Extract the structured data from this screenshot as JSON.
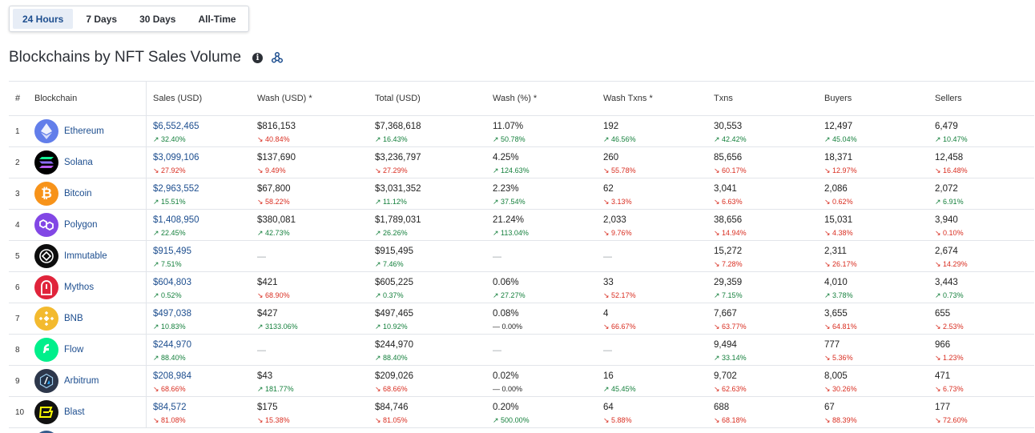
{
  "tabs": [
    {
      "label": "24 Hours",
      "active": true
    },
    {
      "label": "7 Days",
      "active": false
    },
    {
      "label": "30 Days",
      "active": false
    },
    {
      "label": "All-Time",
      "active": false
    }
  ],
  "title": "Blockchains by NFT Sales Volume",
  "headers": {
    "rank": "#",
    "chain": "Blockchain",
    "sales": "Sales (USD)",
    "wash": "Wash (USD) *",
    "total": "Total (USD)",
    "washpct": "Wash (%) *",
    "washtx": "Wash Txns *",
    "txns": "Txns",
    "buyers": "Buyers",
    "sellers": "Sellers"
  },
  "rows": [
    {
      "rank": "1",
      "name": "Ethereum",
      "icon": "ethereum-icon",
      "sales": "$6,552,465",
      "sales_chg": "32.40%",
      "sales_dir": "up",
      "wash": "$816,153",
      "wash_chg": "40.84%",
      "wash_dir": "down",
      "total": "$7,368,618",
      "total_chg": "16.43%",
      "total_dir": "up",
      "washpct": "11.07%",
      "washpct_chg": "50.78%",
      "washpct_dir": "up",
      "washtx": "192",
      "washtx_chg": "46.56%",
      "washtx_dir": "up",
      "txns": "30,553",
      "txns_chg": "42.42%",
      "txns_dir": "up",
      "buyers": "12,497",
      "buyers_chg": "45.04%",
      "buyers_dir": "up",
      "sellers": "6,479",
      "sellers_chg": "10.47%",
      "sellers_dir": "up"
    },
    {
      "rank": "2",
      "name": "Solana",
      "icon": "solana-icon",
      "sales": "$3,099,106",
      "sales_chg": "27.92%",
      "sales_dir": "down",
      "wash": "$137,690",
      "wash_chg": "9.49%",
      "wash_dir": "down",
      "total": "$3,236,797",
      "total_chg": "27.29%",
      "total_dir": "down",
      "washpct": "4.25%",
      "washpct_chg": "124.63%",
      "washpct_dir": "up",
      "washtx": "260",
      "washtx_chg": "55.78%",
      "washtx_dir": "down",
      "txns": "85,656",
      "txns_chg": "60.17%",
      "txns_dir": "down",
      "buyers": "18,371",
      "buyers_chg": "12.97%",
      "buyers_dir": "down",
      "sellers": "12,458",
      "sellers_chg": "16.48%",
      "sellers_dir": "down"
    },
    {
      "rank": "3",
      "name": "Bitcoin",
      "icon": "bitcoin-icon",
      "sales": "$2,963,552",
      "sales_chg": "15.51%",
      "sales_dir": "up",
      "wash": "$67,800",
      "wash_chg": "58.22%",
      "wash_dir": "down",
      "total": "$3,031,352",
      "total_chg": "11.12%",
      "total_dir": "up",
      "washpct": "2.23%",
      "washpct_chg": "37.54%",
      "washpct_dir": "up",
      "washtx": "62",
      "washtx_chg": "3.13%",
      "washtx_dir": "down",
      "txns": "3,041",
      "txns_chg": "6.63%",
      "txns_dir": "down",
      "buyers": "2,086",
      "buyers_chg": "0.62%",
      "buyers_dir": "down",
      "sellers": "2,072",
      "sellers_chg": "6.91%",
      "sellers_dir": "up"
    },
    {
      "rank": "4",
      "name": "Polygon",
      "icon": "polygon-icon",
      "sales": "$1,408,950",
      "sales_chg": "22.45%",
      "sales_dir": "up",
      "wash": "$380,081",
      "wash_chg": "42.73%",
      "wash_dir": "up",
      "total": "$1,789,031",
      "total_chg": "26.26%",
      "total_dir": "up",
      "washpct": "21.24%",
      "washpct_chg": "113.04%",
      "washpct_dir": "up",
      "washtx": "2,033",
      "washtx_chg": "9.76%",
      "washtx_dir": "down",
      "txns": "38,656",
      "txns_chg": "14.94%",
      "txns_dir": "down",
      "buyers": "15,031",
      "buyers_chg": "4.38%",
      "buyers_dir": "down",
      "sellers": "3,940",
      "sellers_chg": "0.10%",
      "sellers_dir": "down"
    },
    {
      "rank": "5",
      "name": "Immutable",
      "icon": "immutable-icon",
      "sales": "$915,495",
      "sales_chg": "7.51%",
      "sales_dir": "up",
      "wash": "—",
      "wash_chg": "",
      "wash_dir": "none",
      "total": "$915,495",
      "total_chg": "7.46%",
      "total_dir": "up",
      "washpct": "—",
      "washpct_chg": "",
      "washpct_dir": "none",
      "washtx": "—",
      "washtx_chg": "",
      "washtx_dir": "none",
      "txns": "15,272",
      "txns_chg": "7.28%",
      "txns_dir": "down",
      "buyers": "2,311",
      "buyers_chg": "26.17%",
      "buyers_dir": "down",
      "sellers": "2,674",
      "sellers_chg": "14.29%",
      "sellers_dir": "down"
    },
    {
      "rank": "6",
      "name": "Mythos",
      "icon": "mythos-icon",
      "sales": "$604,803",
      "sales_chg": "0.52%",
      "sales_dir": "up",
      "wash": "$421",
      "wash_chg": "68.90%",
      "wash_dir": "down",
      "total": "$605,225",
      "total_chg": "0.37%",
      "total_dir": "up",
      "washpct": "0.06%",
      "washpct_chg": "27.27%",
      "washpct_dir": "up",
      "washtx": "33",
      "washtx_chg": "52.17%",
      "washtx_dir": "down",
      "txns": "29,359",
      "txns_chg": "7.15%",
      "txns_dir": "up",
      "buyers": "4,010",
      "buyers_chg": "3.78%",
      "buyers_dir": "up",
      "sellers": "3,443",
      "sellers_chg": "0.73%",
      "sellers_dir": "up"
    },
    {
      "rank": "7",
      "name": "BNB",
      "icon": "bnb-icon",
      "sales": "$497,038",
      "sales_chg": "10.83%",
      "sales_dir": "up",
      "wash": "$427",
      "wash_chg": "3133.06%",
      "wash_dir": "up",
      "total": "$497,465",
      "total_chg": "10.92%",
      "total_dir": "up",
      "washpct": "0.08%",
      "washpct_chg": "0.00%",
      "washpct_dir": "flat",
      "washtx": "4",
      "washtx_chg": "66.67%",
      "washtx_dir": "down",
      "txns": "7,667",
      "txns_chg": "63.77%",
      "txns_dir": "down",
      "buyers": "3,655",
      "buyers_chg": "64.81%",
      "buyers_dir": "down",
      "sellers": "655",
      "sellers_chg": "2.53%",
      "sellers_dir": "down"
    },
    {
      "rank": "8",
      "name": "Flow",
      "icon": "flow-icon",
      "sales": "$244,970",
      "sales_chg": "88.40%",
      "sales_dir": "up",
      "wash": "—",
      "wash_chg": "",
      "wash_dir": "none",
      "total": "$244,970",
      "total_chg": "88.40%",
      "total_dir": "up",
      "washpct": "—",
      "washpct_chg": "",
      "washpct_dir": "none",
      "washtx": "—",
      "washtx_chg": "",
      "washtx_dir": "none",
      "txns": "9,494",
      "txns_chg": "33.14%",
      "txns_dir": "up",
      "buyers": "777",
      "buyers_chg": "5.36%",
      "buyers_dir": "down",
      "sellers": "966",
      "sellers_chg": "1.23%",
      "sellers_dir": "down"
    },
    {
      "rank": "9",
      "name": "Arbitrum",
      "icon": "arbitrum-icon",
      "sales": "$208,984",
      "sales_chg": "68.66%",
      "sales_dir": "down",
      "wash": "$43",
      "wash_chg": "181.77%",
      "wash_dir": "up",
      "total": "$209,026",
      "total_chg": "68.66%",
      "total_dir": "down",
      "washpct": "0.02%",
      "washpct_chg": "0.00%",
      "washpct_dir": "flat",
      "washtx": "16",
      "washtx_chg": "45.45%",
      "washtx_dir": "up",
      "txns": "9,702",
      "txns_chg": "62.63%",
      "txns_dir": "down",
      "buyers": "8,005",
      "buyers_chg": "30.26%",
      "buyers_dir": "down",
      "sellers": "471",
      "sellers_chg": "6.73%",
      "sellers_dir": "down"
    },
    {
      "rank": "10",
      "name": "Blast",
      "icon": "blast-icon",
      "sales": "$84,572",
      "sales_chg": "81.08%",
      "sales_dir": "down",
      "wash": "$175",
      "wash_chg": "15.38%",
      "wash_dir": "down",
      "total": "$84,746",
      "total_chg": "81.05%",
      "total_dir": "down",
      "washpct": "0.20%",
      "washpct_chg": "500.00%",
      "washpct_dir": "up",
      "washtx": "64",
      "washtx_chg": "5.88%",
      "washtx_dir": "down",
      "txns": "688",
      "txns_chg": "68.18%",
      "txns_dir": "down",
      "buyers": "67",
      "buyers_chg": "88.39%",
      "buyers_dir": "down",
      "sellers": "177",
      "sellers_chg": "72.60%",
      "sellers_dir": "down"
    }
  ],
  "colors": {
    "up": "#15803d",
    "down": "#d92d20",
    "link": "#1d4e8f",
    "active_tab_bg": "#e7edf6"
  }
}
